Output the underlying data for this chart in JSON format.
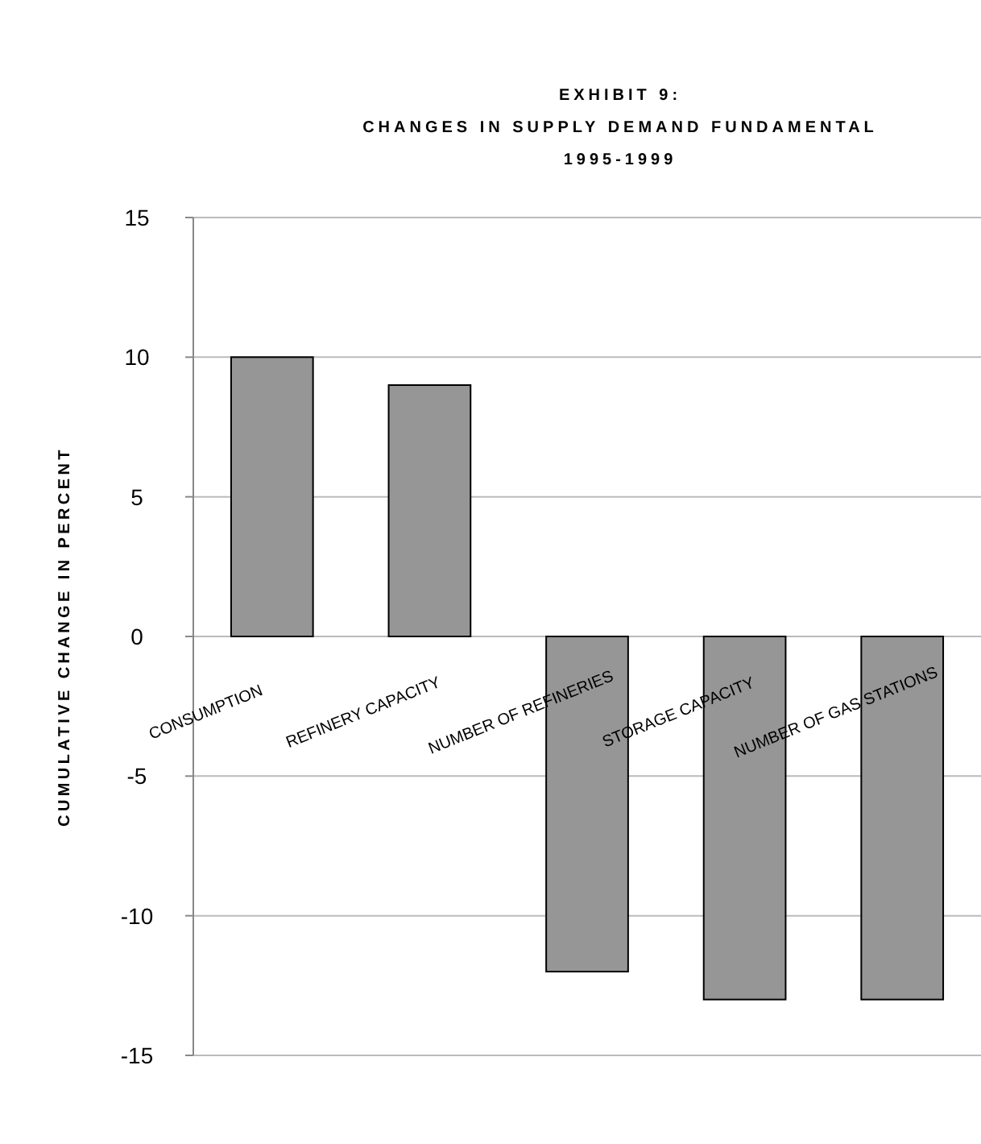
{
  "chart_data": {
    "type": "bar",
    "title": "EXHIBIT 9:\nCHANGES IN SUPPLY DEMAND FUNDAMENTAL\n1995-1999",
    "ylabel": "CUMULATIVE CHANGE IN PERCENT",
    "categories": [
      "CONSUMPTION",
      "REFINERY CAPACITY",
      "NUMBER OF REFINERIES",
      "STORAGE CAPACITY",
      "NUMBER OF GAS STATIONS"
    ],
    "values": [
      10,
      9,
      -12,
      -13,
      -13
    ],
    "color": "#969696",
    "ylim": [
      -15,
      15
    ],
    "yticks": [
      -15,
      -10,
      -5,
      0,
      5,
      10,
      15
    ],
    "grid": "y"
  }
}
